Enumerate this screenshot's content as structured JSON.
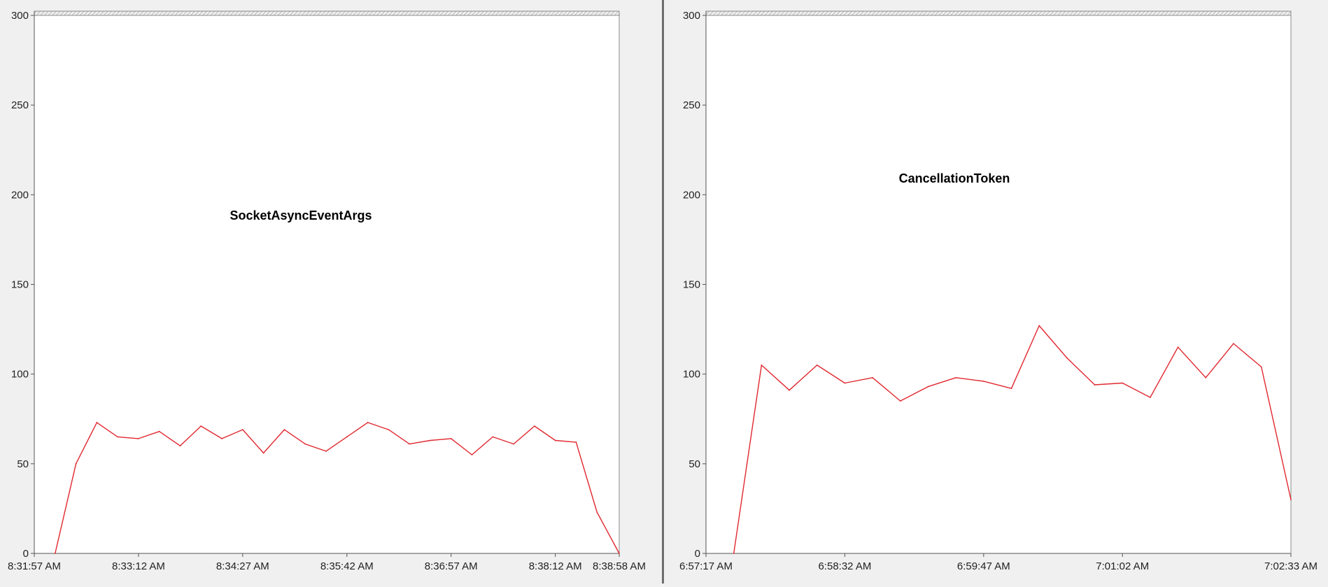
{
  "colors": {
    "background": "#f0f0f0",
    "plot_background": "#ffffff",
    "axis": "#555555",
    "series": "#e0282f",
    "divider": "#6e6e6e"
  },
  "chart_data": [
    {
      "type": "line",
      "title": "SocketAsyncEventArgs",
      "xlabel": "",
      "ylabel": "",
      "x_ticks": [
        "8:31:57 AM",
        "8:33:12 AM",
        "8:34:27 AM",
        "8:35:42 AM",
        "8:36:57 AM",
        "8:38:12 AM",
        "8:38:58 AM"
      ],
      "x_tick_seconds": [
        0,
        75,
        150,
        225,
        300,
        375,
        421
      ],
      "xlim_seconds": [
        0,
        421
      ],
      "ylim": [
        0,
        300
      ],
      "y_ticks": [
        0,
        50,
        100,
        150,
        200,
        250,
        300
      ],
      "grid": false,
      "series": [
        {
          "x_seconds": [
            15,
            30,
            45,
            60,
            75,
            90,
            105,
            120,
            135,
            150,
            165,
            180,
            195,
            210,
            225,
            240,
            255,
            270,
            285,
            300,
            315,
            330,
            345,
            360,
            375,
            390,
            405,
            421
          ],
          "values": [
            0,
            50,
            73,
            65,
            64,
            68,
            60,
            71,
            64,
            69,
            56,
            69,
            61,
            57,
            65,
            73,
            69,
            61,
            63,
            64,
            55,
            65,
            61,
            71,
            63,
            62,
            23,
            0
          ]
        }
      ]
    },
    {
      "type": "line",
      "title": "CancellationToken",
      "xlabel": "",
      "ylabel": "",
      "x_ticks": [
        "6:57:17 AM",
        "6:58:32 AM",
        "6:59:47 AM",
        "7:01:02 AM",
        "7:02:33 AM"
      ],
      "x_tick_seconds": [
        0,
        75,
        150,
        225,
        316
      ],
      "xlim_seconds": [
        0,
        316
      ],
      "ylim": [
        0,
        300
      ],
      "y_ticks": [
        0,
        50,
        100,
        150,
        200,
        250,
        300
      ],
      "grid": false,
      "series": [
        {
          "x_seconds": [
            15,
            30,
            45,
            60,
            75,
            90,
            105,
            120,
            135,
            150,
            165,
            180,
            195,
            210,
            225,
            240,
            255,
            270,
            285,
            300,
            316
          ],
          "values": [
            0,
            105,
            91,
            105,
            95,
            98,
            85,
            93,
            98,
            96,
            92,
            127,
            109,
            94,
            95,
            87,
            115,
            98,
            117,
            104,
            30
          ]
        }
      ]
    }
  ]
}
